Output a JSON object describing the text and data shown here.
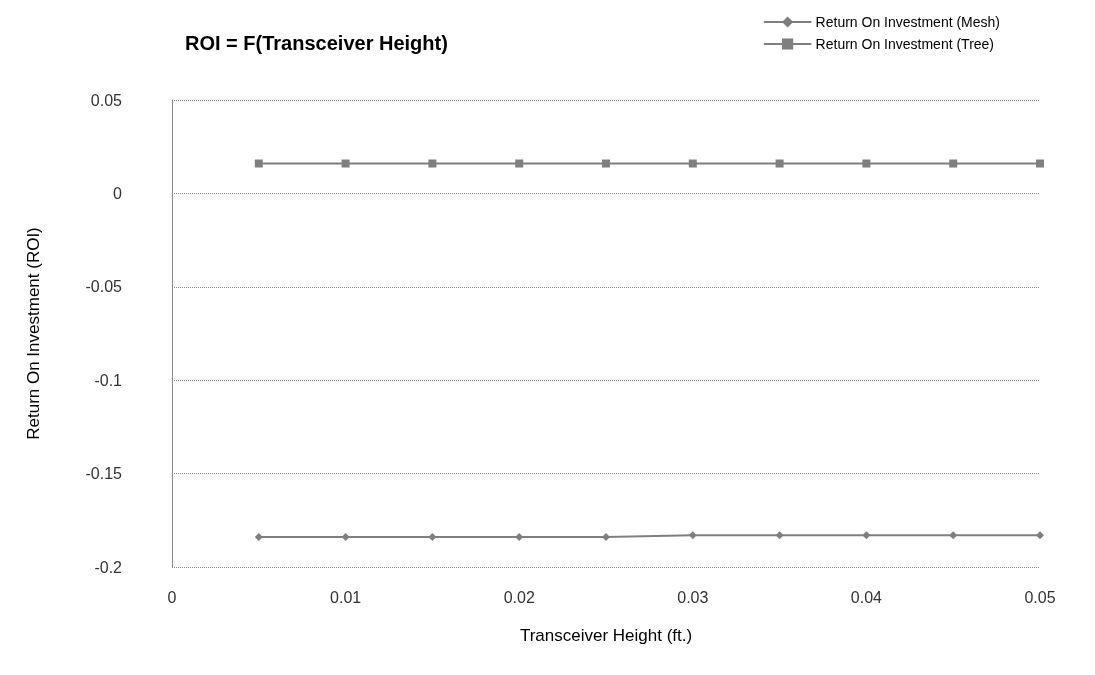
{
  "chart_data": {
    "type": "line",
    "title": "ROI = F(Transceiver Height)",
    "xlabel": "Transceiver Height (ft.)",
    "ylabel": "Return On Investment (ROI)",
    "x": [
      0.005,
      0.01,
      0.015,
      0.02,
      0.025,
      0.03,
      0.035,
      0.04,
      0.045,
      0.05
    ],
    "series": [
      {
        "name": "Return On Investment (Mesh)",
        "color": "#7f7f7f",
        "marker": "diamond",
        "values": [
          -0.184,
          -0.184,
          -0.184,
          -0.184,
          -0.184,
          -0.183,
          -0.183,
          -0.183,
          -0.183,
          -0.183
        ]
      },
      {
        "name": "Return On Investment (Tree)",
        "color": "#7f7f7f",
        "marker": "square",
        "values": [
          0.016,
          0.016,
          0.016,
          0.016,
          0.016,
          0.016,
          0.016,
          0.016,
          0.016,
          0.016
        ]
      }
    ],
    "xlim": [
      0,
      0.05
    ],
    "xticks": [
      0,
      0.01,
      0.02,
      0.03,
      0.04,
      0.05
    ],
    "ylim": [
      -0.2,
      0.05
    ],
    "yticks": [
      -0.2,
      -0.15,
      -0.1,
      -0.05,
      0,
      0.05
    ],
    "grid": "y",
    "legend": "top right",
    "line_style": "solid"
  }
}
